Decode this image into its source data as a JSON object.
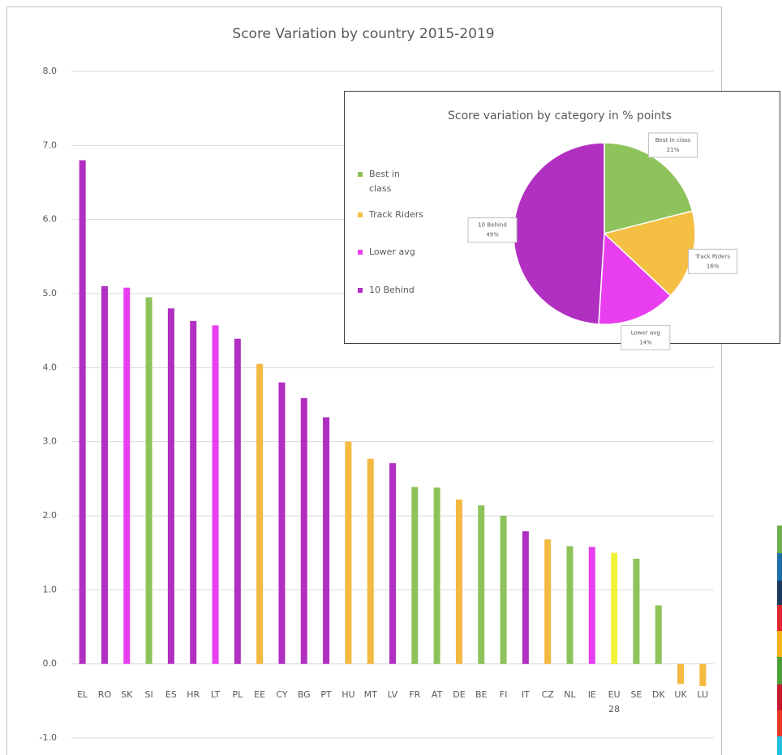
{
  "chart_data": [
    {
      "type": "bar",
      "title": "Score Variation by country 2015-2019",
      "categories": [
        "EL",
        "RO",
        "SK",
        "SI",
        "ES",
        "HR",
        "LT",
        "PL",
        "EE",
        "CY",
        "BG",
        "PT",
        "HU",
        "MT",
        "LV",
        "FR",
        "AT",
        "DE",
        "BE",
        "FI",
        "IT",
        "CZ",
        "NL",
        "IE",
        "EU 28",
        "SE",
        "DK",
        "UK",
        "LU"
      ],
      "values": [
        6.8,
        5.1,
        5.08,
        4.95,
        4.8,
        4.63,
        4.57,
        4.39,
        4.05,
        3.8,
        3.59,
        3.33,
        3.0,
        2.77,
        2.71,
        2.39,
        2.38,
        2.22,
        2.14,
        2.0,
        1.79,
        1.68,
        1.59,
        1.58,
        1.5,
        1.42,
        0.79,
        -0.27,
        -0.3
      ],
      "colors": [
        "#b12fc1",
        "#b12fc1",
        "#e83ef0",
        "#8dc35a",
        "#b12fc1",
        "#b12fc1",
        "#e83ef0",
        "#b12fc1",
        "#f4b940",
        "#b12fc1",
        "#b12fc1",
        "#b12fc1",
        "#f4b940",
        "#f4b940",
        "#b12fc1",
        "#8dc35a",
        "#8dc35a",
        "#f4b940",
        "#8dc35a",
        "#8dc35a",
        "#b12fc1",
        "#f4b940",
        "#8dc35a",
        "#e83ef0",
        "#f2f23a",
        "#8dc35a",
        "#8dc35a",
        "#f4b940",
        "#f4b940"
      ],
      "ylim": [
        -1,
        8
      ],
      "yticks": [
        {
          "value": -1,
          "label": "-1.0"
        },
        {
          "value": 0,
          "label": "0.0"
        },
        {
          "value": 1,
          "label": "1.0"
        },
        {
          "value": 2,
          "label": "2.0"
        },
        {
          "value": 3,
          "label": "3.0"
        },
        {
          "value": 4,
          "label": "4.0"
        },
        {
          "value": 5,
          "label": "5.0"
        },
        {
          "value": 6,
          "label": "6.0"
        },
        {
          "value": 7,
          "label": "7.0"
        },
        {
          "value": 8,
          "label": "8.0"
        }
      ],
      "grid": true
    },
    {
      "type": "pie",
      "title": "Score variation by category in % points",
      "categories": [
        "Best in class",
        "Track Riders",
        "Lower avg",
        "10 Behind"
      ],
      "values": [
        21,
        16,
        14,
        49
      ],
      "value_labels": [
        "21%",
        "16%",
        "14%",
        "49%"
      ],
      "colors": [
        "#8dc35a",
        "#f4bf42",
        "#e83ef0",
        "#b12fc1"
      ],
      "legend": "left"
    }
  ]
}
